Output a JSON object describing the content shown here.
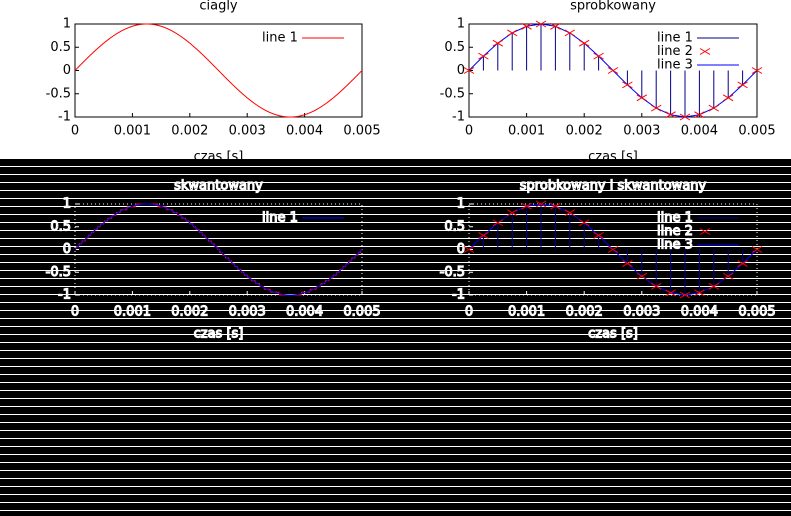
{
  "chart_data": [
    {
      "type": "line",
      "title": "ciagly",
      "xlabel": "czas [s]",
      "ylabel": "",
      "xlim": [
        0,
        0.005
      ],
      "ylim": [
        -1,
        1
      ],
      "xticks": [
        "0",
        "0.001",
        "0.002",
        "0.003",
        "0.004",
        "0.005"
      ],
      "yticks": [
        "1",
        "0.5",
        "0",
        "-0.5",
        "-1"
      ],
      "signal": {
        "function": "sin",
        "frequency_hz": 200,
        "amplitude": 1
      },
      "legend": [
        {
          "label": "line 1",
          "color": "#ff0000",
          "style": "line"
        }
      ],
      "legend_position": "top-right",
      "theme": "light"
    },
    {
      "type": "line",
      "title": "sprobkowany",
      "xlabel": "czas [s]",
      "ylabel": "",
      "xlim": [
        0,
        0.005
      ],
      "ylim": [
        -1,
        1
      ],
      "xticks": [
        "0",
        "0.001",
        "0.002",
        "0.003",
        "0.004",
        "0.005"
      ],
      "yticks": [
        "1",
        "0.5",
        "0",
        "-0.5",
        "-1"
      ],
      "x": [
        0,
        0.00025,
        0.0005,
        0.00075,
        0.001,
        0.00125,
        0.0015,
        0.00175,
        0.002,
        0.00225,
        0.0025,
        0.00275,
        0.003,
        0.00325,
        0.0035,
        0.00375,
        0.004,
        0.00425,
        0.0045,
        0.00475,
        0.005
      ],
      "y": [
        0,
        0.309,
        0.588,
        0.809,
        0.951,
        1,
        0.951,
        0.809,
        0.588,
        0.309,
        0,
        -0.309,
        -0.588,
        -0.809,
        -0.951,
        -1,
        -0.951,
        -0.809,
        -0.588,
        -0.309,
        0
      ],
      "legend": [
        {
          "label": "line 1",
          "color": "#00008b",
          "style": "impulse"
        },
        {
          "label": "line 2",
          "color": "#ff0000",
          "style": "cross"
        },
        {
          "label": "line 3",
          "color": "#0000ff",
          "style": "line"
        }
      ],
      "legend_position": "top-right",
      "theme": "light"
    },
    {
      "type": "line",
      "title": "skwantowany",
      "xlabel": "czas [s]",
      "ylabel": "",
      "xlim": [
        0,
        0.005
      ],
      "ylim": [
        -1,
        1
      ],
      "xticks": [
        "0",
        "0.001",
        "0.002",
        "0.003",
        "0.004",
        "0.005"
      ],
      "yticks": [
        "1",
        "0.5",
        "0",
        "-0.5",
        "-1"
      ],
      "signal": {
        "function": "sin",
        "frequency_hz": 200,
        "amplitude": 1,
        "quantized": true
      },
      "legend": [
        {
          "label": "line 1",
          "color": "#0000ff",
          "style": "line"
        }
      ],
      "legend_position": "top-right",
      "theme": "dark"
    },
    {
      "type": "line",
      "title": "sprobkowany i skwantowany",
      "xlabel": "czas [s]",
      "ylabel": "",
      "xlim": [
        0,
        0.005
      ],
      "ylim": [
        -1,
        1
      ],
      "xticks": [
        "0",
        "0.001",
        "0.002",
        "0.003",
        "0.004",
        "0.005"
      ],
      "yticks": [
        "1",
        "0.5",
        "0",
        "-0.5",
        "-1"
      ],
      "x": [
        0,
        0.00025,
        0.0005,
        0.00075,
        0.001,
        0.00125,
        0.0015,
        0.00175,
        0.002,
        0.00225,
        0.0025,
        0.00275,
        0.003,
        0.00325,
        0.0035,
        0.00375,
        0.004,
        0.00425,
        0.0045,
        0.00475,
        0.005
      ],
      "y": [
        0,
        0.309,
        0.588,
        0.809,
        0.951,
        1,
        0.951,
        0.809,
        0.588,
        0.309,
        0,
        -0.309,
        -0.588,
        -0.809,
        -0.951,
        -1,
        -0.951,
        -0.809,
        -0.588,
        -0.309,
        0
      ],
      "legend": [
        {
          "label": "line 1",
          "color": "#00008b",
          "style": "impulse"
        },
        {
          "label": "line 2",
          "color": "#ff0000",
          "style": "cross"
        },
        {
          "label": "line 3",
          "color": "#0000ff",
          "style": "line"
        }
      ],
      "legend_position": "top-right",
      "theme": "dark"
    }
  ]
}
